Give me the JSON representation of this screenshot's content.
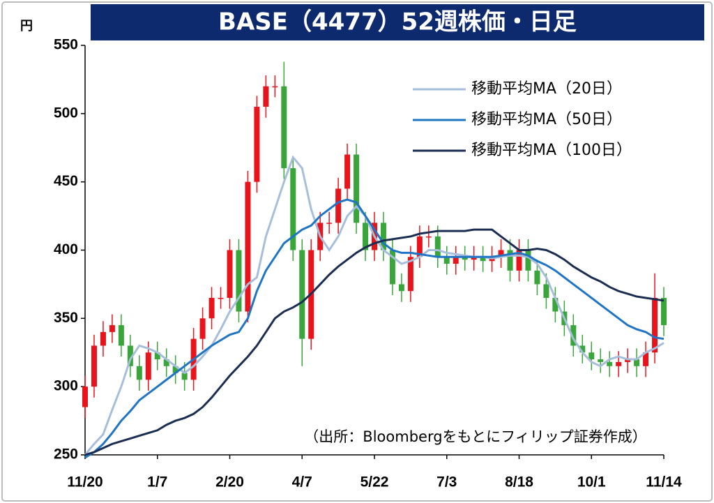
{
  "chart_data": {
    "type": "candlestick",
    "title": "BASE（4477）52週株価・日足",
    "y_unit": "円",
    "note": "（出所：Bloombergをもとにフィリップ証券作成）",
    "categories": [
      "11/20",
      null,
      null,
      null,
      null,
      null,
      null,
      null,
      "1/7",
      null,
      null,
      null,
      null,
      null,
      null,
      null,
      "2/20",
      null,
      null,
      null,
      null,
      null,
      null,
      null,
      "4/7",
      null,
      null,
      null,
      null,
      null,
      null,
      null,
      "5/22",
      null,
      null,
      null,
      null,
      null,
      null,
      null,
      "7/3",
      null,
      null,
      null,
      null,
      null,
      null,
      null,
      "8/18",
      null,
      null,
      null,
      null,
      null,
      null,
      null,
      "10/1",
      null,
      null,
      null,
      null,
      null,
      null,
      null,
      "11/14"
    ],
    "candles": {
      "up_color": "#e8141c",
      "down_color": "#3aa53a",
      "open": [
        285,
        300,
        330,
        340,
        345,
        330,
        315,
        305,
        325,
        320,
        315,
        310,
        305,
        335,
        350,
        365,
        365,
        400,
        355,
        450,
        505,
        520,
        520,
        460,
        400,
        335,
        400,
        420,
        420,
        445,
        470,
        420,
        400,
        420,
        400,
        375,
        370,
        395,
        410,
        410,
        395,
        390,
        395,
        393,
        395,
        392,
        395,
        400,
        385,
        400,
        385,
        375,
        365,
        355,
        345,
        330,
        325,
        320,
        318,
        315,
        318,
        320,
        315,
        325,
        365
      ],
      "high": [
        308,
        338,
        348,
        353,
        353,
        338,
        323,
        333,
        333,
        328,
        323,
        318,
        343,
        358,
        373,
        373,
        408,
        408,
        458,
        513,
        528,
        528,
        538,
        468,
        408,
        408,
        428,
        428,
        453,
        478,
        478,
        428,
        428,
        428,
        408,
        383,
        403,
        418,
        418,
        418,
        403,
        403,
        403,
        403,
        403,
        403,
        408,
        408,
        408,
        408,
        393,
        383,
        373,
        363,
        353,
        338,
        333,
        328,
        326,
        326,
        328,
        328,
        333,
        383,
        373
      ],
      "low": [
        277,
        292,
        322,
        332,
        322,
        307,
        297,
        297,
        312,
        307,
        302,
        297,
        297,
        327,
        342,
        357,
        357,
        347,
        347,
        442,
        497,
        512,
        452,
        392,
        315,
        327,
        392,
        412,
        412,
        437,
        412,
        392,
        392,
        392,
        367,
        362,
        362,
        387,
        402,
        387,
        382,
        382,
        385,
        385,
        384,
        384,
        387,
        377,
        377,
        377,
        367,
        357,
        347,
        337,
        322,
        317,
        312,
        310,
        307,
        307,
        310,
        307,
        307,
        317,
        337
      ],
      "close": [
        300,
        330,
        340,
        345,
        330,
        315,
        305,
        325,
        320,
        315,
        310,
        305,
        335,
        350,
        365,
        365,
        400,
        355,
        450,
        505,
        520,
        520,
        460,
        400,
        335,
        400,
        420,
        420,
        445,
        470,
        420,
        400,
        420,
        400,
        375,
        370,
        395,
        410,
        410,
        395,
        390,
        395,
        393,
        395,
        392,
        395,
        400,
        385,
        400,
        385,
        375,
        365,
        355,
        345,
        330,
        325,
        320,
        318,
        315,
        318,
        320,
        315,
        325,
        365,
        345
      ]
    },
    "series": [
      {
        "name": "移動平均MA（20日）",
        "color": "#a7bedb",
        "values": [
          250,
          258,
          265,
          283,
          300,
          320,
          330,
          328,
          325,
          320,
          315,
          310,
          315,
          322,
          330,
          342,
          355,
          365,
          375,
          380,
          410,
          430,
          450,
          468,
          460,
          430,
          410,
          400,
          410,
          425,
          432,
          425,
          410,
          400,
          395,
          390,
          392,
          395,
          400,
          400,
          398,
          397,
          396,
          395,
          395,
          394,
          395,
          396,
          396,
          395,
          390,
          380,
          365,
          350,
          335,
          325,
          318,
          315,
          320,
          322,
          320,
          320,
          325,
          328,
          332
        ]
      },
      {
        "name": "移動平均MA（50日）",
        "color": "#1f74c4",
        "values": [
          248,
          252,
          258,
          266,
          275,
          282,
          290,
          295,
          300,
          305,
          310,
          315,
          320,
          325,
          330,
          334,
          338,
          340,
          350,
          370,
          385,
          395,
          405,
          410,
          415,
          418,
          425,
          430,
          435,
          437,
          435,
          425,
          415,
          405,
          400,
          398,
          398,
          397,
          396,
          395,
          395,
          395,
          395,
          395,
          395,
          395,
          396,
          397,
          398,
          396,
          392,
          389,
          385,
          380,
          375,
          370,
          365,
          360,
          355,
          350,
          345,
          342,
          340,
          336,
          335
        ]
      },
      {
        "name": "移動平均MA（100日）",
        "color": "#1b2e52",
        "values": [
          250,
          252,
          255,
          258,
          260,
          262,
          264,
          266,
          268,
          272,
          275,
          277,
          280,
          285,
          292,
          300,
          308,
          315,
          322,
          330,
          340,
          350,
          355,
          358,
          362,
          368,
          375,
          382,
          388,
          393,
          398,
          402,
          405,
          407,
          408,
          409,
          410,
          412,
          413,
          414,
          414,
          414,
          414,
          415,
          415,
          415,
          410,
          405,
          400,
          400,
          401,
          400,
          397,
          393,
          388,
          384,
          380,
          377,
          373,
          370,
          368,
          366,
          365,
          364,
          363
        ]
      }
    ],
    "ylim": [
      250,
      550
    ],
    "yticks": [
      250,
      300,
      350,
      400,
      450,
      500,
      550
    ],
    "grid": false,
    "legend": "top-right",
    "title_background": "#0d2a6e"
  }
}
